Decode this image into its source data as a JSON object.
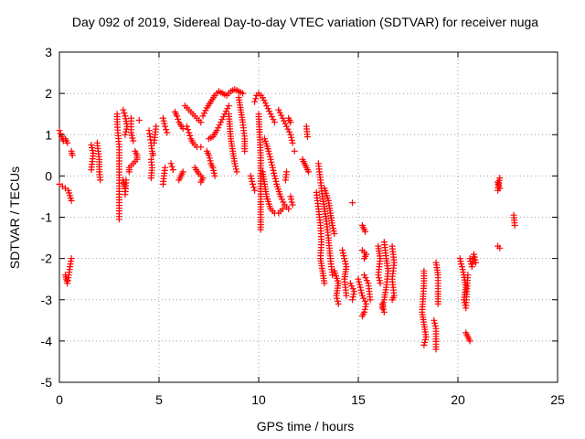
{
  "chart_data": {
    "type": "scatter",
    "title": "Day 092 of 2019, Sidereal Day-to-day VTEC variation (SDTVAR) for receiver nuga",
    "xlabel": "GPS time / hours",
    "ylabel": "SDTVAR / TECUs",
    "xlim": [
      0,
      25
    ],
    "ylim": [
      -5,
      3
    ],
    "xticks": [
      "0",
      "5",
      "10",
      "15",
      "20",
      "25"
    ],
    "yticks": [
      "3",
      "2",
      "1",
      "0",
      "-1",
      "-2",
      "-3",
      "-4",
      "-5"
    ],
    "grid": true,
    "marker": "+",
    "series": [
      {
        "name": "SDTVAR",
        "color": "#ff0000",
        "segments": [
          [
            [
              0.0,
              1.1
            ],
            [
              0.1,
              0.95
            ],
            [
              0.2,
              0.85
            ],
            [
              0.3,
              0.9
            ],
            [
              0.4,
              0.8
            ]
          ],
          [
            [
              0.0,
              -0.2
            ],
            [
              0.15,
              -0.25
            ],
            [
              0.3,
              -0.3
            ],
            [
              0.45,
              -0.35
            ],
            [
              0.6,
              -0.6
            ]
          ],
          [
            [
              0.3,
              -2.4
            ],
            [
              0.35,
              -2.5
            ],
            [
              0.4,
              -2.6
            ],
            [
              0.6,
              -2.0
            ]
          ],
          [
            [
              0.6,
              0.6
            ],
            [
              0.65,
              0.5
            ]
          ],
          [
            [
              1.6,
              0.75
            ],
            [
              1.7,
              0.55
            ],
            [
              1.6,
              0.15
            ]
          ],
          [
            [
              1.9,
              0.8
            ],
            [
              2.0,
              0.4
            ],
            [
              2.0,
              0.1
            ],
            [
              2.05,
              -0.1
            ]
          ],
          [
            [
              2.9,
              1.5
            ],
            [
              2.9,
              1.25
            ],
            [
              3.0,
              0.7
            ],
            [
              3.0,
              -1.05
            ]
          ],
          [
            [
              3.2,
              1.6
            ],
            [
              3.3,
              1.45
            ],
            [
              3.4,
              1.2
            ],
            [
              3.3,
              1.0
            ]
          ],
          [
            [
              3.2,
              -0.1
            ],
            [
              3.25,
              -0.2
            ],
            [
              3.3,
              -0.3
            ],
            [
              3.3,
              -0.45
            ],
            [
              3.35,
              -0.1
            ]
          ],
          [
            [
              3.6,
              1.4
            ],
            [
              3.6,
              1.05
            ],
            [
              3.7,
              0.85
            ]
          ],
          [
            [
              3.8,
              0.6
            ],
            [
              3.9,
              0.5
            ],
            [
              3.9,
              0.4
            ],
            [
              3.5,
              0.2
            ],
            [
              3.5,
              0.1
            ]
          ],
          [
            [
              4.0,
              1.35
            ]
          ],
          [
            [
              4.5,
              1.1
            ],
            [
              4.55,
              0.95
            ],
            [
              4.6,
              0.8
            ],
            [
              4.65,
              0.6
            ],
            [
              4.7,
              0.5
            ]
          ],
          [
            [
              4.6,
              0.4
            ],
            [
              4.65,
              0.2
            ],
            [
              4.6,
              -0.05
            ]
          ],
          [
            [
              4.85,
              1.2
            ],
            [
              4.8,
              1.0
            ],
            [
              4.75,
              0.8
            ]
          ],
          [
            [
              5.2,
              1.4
            ],
            [
              5.3,
              1.2
            ],
            [
              5.4,
              1.05
            ]
          ],
          [
            [
              5.3,
              0.2
            ],
            [
              5.2,
              -0.2
            ]
          ],
          [
            [
              5.6,
              0.3
            ],
            [
              5.7,
              0.15
            ]
          ],
          [
            [
              5.8,
              1.55
            ],
            [
              5.9,
              1.45
            ],
            [
              6.0,
              1.3
            ],
            [
              6.2,
              1.15
            ]
          ],
          [
            [
              6.3,
              1.7
            ],
            [
              6.5,
              1.6
            ],
            [
              6.7,
              1.5
            ],
            [
              6.9,
              1.4
            ],
            [
              7.1,
              1.3
            ]
          ],
          [
            [
              6.4,
              1.2
            ],
            [
              6.5,
              1.05
            ],
            [
              6.6,
              0.9
            ],
            [
              6.7,
              0.8
            ],
            [
              6.9,
              0.7
            ],
            [
              7.1,
              0.7
            ]
          ],
          [
            [
              6.2,
              0.1
            ],
            [
              6.1,
              0.0
            ],
            [
              6.0,
              -0.1
            ]
          ],
          [
            [
              6.8,
              0.2
            ],
            [
              7.0,
              0.05
            ],
            [
              7.2,
              -0.05
            ],
            [
              7.1,
              -0.15
            ]
          ],
          [
            [
              7.2,
              1.45
            ],
            [
              7.4,
              1.65
            ],
            [
              7.6,
              1.8
            ],
            [
              7.8,
              1.95
            ],
            [
              8.0,
              2.05
            ],
            [
              8.2,
              2.0
            ],
            [
              8.4,
              1.95
            ],
            [
              8.6,
              2.05
            ],
            [
              8.8,
              2.1
            ],
            [
              9.0,
              2.05
            ],
            [
              9.2,
              2.0
            ]
          ],
          [
            [
              7.4,
              0.6
            ],
            [
              7.5,
              0.5
            ],
            [
              7.6,
              0.3
            ],
            [
              7.7,
              0.2
            ],
            [
              7.8,
              0.0
            ]
          ],
          [
            [
              7.5,
              0.9
            ],
            [
              7.7,
              0.95
            ],
            [
              7.9,
              1.1
            ],
            [
              8.1,
              1.3
            ],
            [
              8.3,
              1.5
            ],
            [
              8.5,
              1.7
            ]
          ],
          [
            [
              8.5,
              1.5
            ],
            [
              8.55,
              1.2
            ],
            [
              8.6,
              0.9
            ],
            [
              8.7,
              0.6
            ],
            [
              8.8,
              0.3
            ],
            [
              8.9,
              0.1
            ]
          ],
          [
            [
              9.0,
              1.9
            ],
            [
              9.1,
              1.6
            ],
            [
              9.2,
              1.3
            ],
            [
              9.3,
              0.9
            ],
            [
              9.3,
              0.6
            ]
          ],
          [
            [
              9.6,
              0.0
            ],
            [
              9.7,
              -0.2
            ],
            [
              9.8,
              -0.35
            ]
          ],
          [
            [
              9.8,
              1.8
            ],
            [
              9.9,
              1.95
            ],
            [
              10.0,
              2.0
            ],
            [
              10.2,
              1.9
            ],
            [
              10.4,
              1.7
            ],
            [
              10.6,
              1.5
            ],
            [
              10.8,
              1.3
            ]
          ],
          [
            [
              10.0,
              1.5
            ],
            [
              10.05,
              1.0
            ],
            [
              10.1,
              0.5
            ],
            [
              10.1,
              0.0
            ],
            [
              10.1,
              -0.5
            ],
            [
              10.1,
              -1.0
            ],
            [
              10.1,
              -1.3
            ]
          ],
          [
            [
              10.3,
              0.9
            ],
            [
              10.5,
              0.6
            ],
            [
              10.7,
              0.2
            ],
            [
              10.9,
              -0.2
            ],
            [
              11.1,
              -0.5
            ],
            [
              11.3,
              -0.7
            ],
            [
              11.5,
              -0.8
            ]
          ],
          [
            [
              10.2,
              0.1
            ],
            [
              10.3,
              -0.2
            ],
            [
              10.4,
              -0.5
            ],
            [
              10.6,
              -0.8
            ],
            [
              10.8,
              -0.9
            ],
            [
              11.0,
              -0.9
            ],
            [
              11.2,
              -0.8
            ]
          ],
          [
            [
              11.0,
              1.6
            ],
            [
              11.2,
              1.4
            ],
            [
              11.4,
              1.2
            ],
            [
              11.6,
              1.0
            ],
            [
              11.7,
              0.8
            ]
          ],
          [
            [
              11.5,
              1.4
            ],
            [
              11.6,
              1.3
            ]
          ],
          [
            [
              11.6,
              -0.5
            ],
            [
              11.7,
              -0.7
            ]
          ],
          [
            [
              11.8,
              0.6
            ]
          ],
          [
            [
              12.2,
              0.4
            ],
            [
              12.3,
              0.3
            ],
            [
              12.4,
              0.2
            ],
            [
              12.5,
              0.1
            ]
          ],
          [
            [
              12.4,
              1.2
            ],
            [
              12.45,
              0.95
            ]
          ],
          [
            [
              11.4,
              0.1
            ],
            [
              11.35,
              -0.1
            ]
          ],
          [
            [
              13.0,
              0.3
            ],
            [
              13.1,
              -0.1
            ],
            [
              13.2,
              -0.5
            ],
            [
              13.3,
              -0.8
            ],
            [
              13.4,
              -1.1
            ],
            [
              13.5,
              -1.5
            ],
            [
              13.6,
              -2.0
            ],
            [
              13.7,
              -2.4
            ]
          ],
          [
            [
              12.9,
              -0.4
            ],
            [
              13.0,
              -0.8
            ],
            [
              13.1,
              -1.2
            ],
            [
              13.15,
              -1.6
            ],
            [
              13.1,
              -2.0
            ],
            [
              13.2,
              -2.3
            ],
            [
              13.3,
              -2.6
            ]
          ],
          [
            [
              13.3,
              -0.3
            ],
            [
              13.5,
              -0.6
            ],
            [
              13.6,
              -0.9
            ],
            [
              13.7,
              -1.2
            ],
            [
              13.8,
              -1.4
            ]
          ],
          [
            [
              13.8,
              -2.3
            ],
            [
              14.0,
              -2.6
            ],
            [
              13.9,
              -2.9
            ],
            [
              14.0,
              -3.1
            ]
          ],
          [
            [
              14.2,
              -1.8
            ],
            [
              14.4,
              -2.2
            ],
            [
              14.3,
              -2.5
            ],
            [
              14.4,
              -2.9
            ]
          ],
          [
            [
              14.7,
              -0.65
            ]
          ],
          [
            [
              14.6,
              -2.6
            ],
            [
              14.8,
              -2.8
            ],
            [
              14.7,
              -3.0
            ]
          ],
          [
            [
              15.2,
              -1.8
            ],
            [
              15.4,
              -1.9
            ],
            [
              15.3,
              -2.0
            ]
          ],
          [
            [
              15.2,
              -1.2
            ],
            [
              15.35,
              -1.35
            ]
          ],
          [
            [
              15.0,
              -2.5
            ],
            [
              15.2,
              -2.9
            ],
            [
              15.4,
              -3.1
            ],
            [
              15.3,
              -3.3
            ],
            [
              15.2,
              -3.4
            ]
          ],
          [
            [
              15.3,
              -2.4
            ],
            [
              15.5,
              -2.6
            ],
            [
              15.6,
              -3.0
            ]
          ],
          [
            [
              16.0,
              -1.7
            ],
            [
              16.1,
              -2.0
            ],
            [
              16.0,
              -2.4
            ],
            [
              16.1,
              -2.6
            ]
          ],
          [
            [
              16.3,
              -1.6
            ],
            [
              16.4,
              -2.0
            ],
            [
              16.5,
              -2.3
            ],
            [
              16.4,
              -2.7
            ],
            [
              16.3,
              -3.0
            ],
            [
              16.2,
              -3.2
            ]
          ],
          [
            [
              16.2,
              -3.1
            ],
            [
              16.3,
              -3.3
            ]
          ],
          [
            [
              16.7,
              -1.7
            ],
            [
              16.8,
              -2.1
            ],
            [
              16.7,
              -2.5
            ],
            [
              16.8,
              -2.9
            ],
            [
              16.7,
              -3.0
            ]
          ],
          [
            [
              18.3,
              -2.3
            ],
            [
              18.3,
              -2.6
            ],
            [
              18.2,
              -3.3
            ],
            [
              18.3,
              -3.6
            ],
            [
              18.4,
              -3.9
            ],
            [
              18.3,
              -4.1
            ]
          ],
          [
            [
              18.9,
              -2.1
            ],
            [
              19.0,
              -2.4
            ],
            [
              19.0,
              -2.8
            ],
            [
              19.0,
              -3.1
            ]
          ],
          [
            [
              18.8,
              -3.5
            ],
            [
              18.9,
              -3.7
            ],
            [
              18.9,
              -4.2
            ]
          ],
          [
            [
              20.1,
              -2.0
            ],
            [
              20.3,
              -2.4
            ],
            [
              20.4,
              -2.7
            ],
            [
              20.3,
              -3.0
            ],
            [
              20.4,
              -3.2
            ],
            [
              20.5,
              -2.4
            ]
          ],
          [
            [
              20.6,
              -2.0
            ],
            [
              20.7,
              -2.2
            ],
            [
              20.8,
              -1.9
            ],
            [
              20.9,
              -2.1
            ]
          ],
          [
            [
              20.4,
              -3.8
            ],
            [
              20.5,
              -3.9
            ],
            [
              20.6,
              -4.0
            ]
          ],
          [
            [
              22.0,
              -0.15
            ],
            [
              22.05,
              -0.25
            ],
            [
              22.1,
              -0.3
            ],
            [
              22.0,
              -0.35
            ],
            [
              22.1,
              -0.05
            ]
          ],
          [
            [
              22.0,
              -1.7
            ],
            [
              22.1,
              -1.75
            ]
          ],
          [
            [
              22.8,
              -0.95
            ],
            [
              22.85,
              -1.2
            ]
          ]
        ]
      }
    ]
  }
}
